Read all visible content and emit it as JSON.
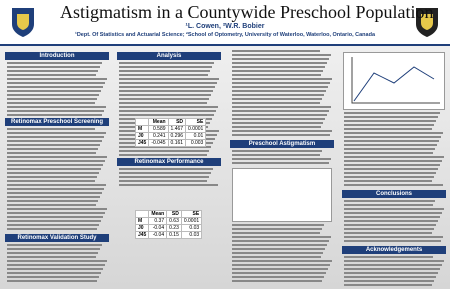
{
  "header": {
    "title": "Astigmatism in a Countywide Preschool Population",
    "authors": "¹L. Cowen, ²W.R. Bobier",
    "affiliations": "¹Dept. Of Statistics and Actuarial Science; ²School of Optometry, University of Waterloo, Waterloo, Ontario, Canada"
  },
  "sections": [
    "Introduction",
    "Retinomax Preschool Screening",
    "Retinomax Validation Study",
    "Analysis",
    "Retinomax Performance",
    "Preschool Astigmatism",
    "Conclusions",
    "Acknowledgements"
  ],
  "tables": [
    {
      "columns": [
        "Mean",
        "SD",
        "SE"
      ],
      "rows": [
        [
          "M",
          "0.589",
          "1.467",
          "0.0001"
        ],
        [
          "J0",
          "0.241",
          "0.296",
          "0.01"
        ],
        [
          "J45",
          "-0.045",
          "0.161",
          "0.003"
        ]
      ]
    },
    {
      "columns": [
        "Mean",
        "SD",
        "SE"
      ],
      "rows": [
        [
          "M",
          "0.37",
          "0.63",
          "0.0001"
        ],
        [
          "J0",
          "-0.04",
          "0.23",
          "0.03"
        ],
        [
          "J45",
          "-0.04",
          "0.15",
          "0.03"
        ]
      ]
    }
  ]
}
